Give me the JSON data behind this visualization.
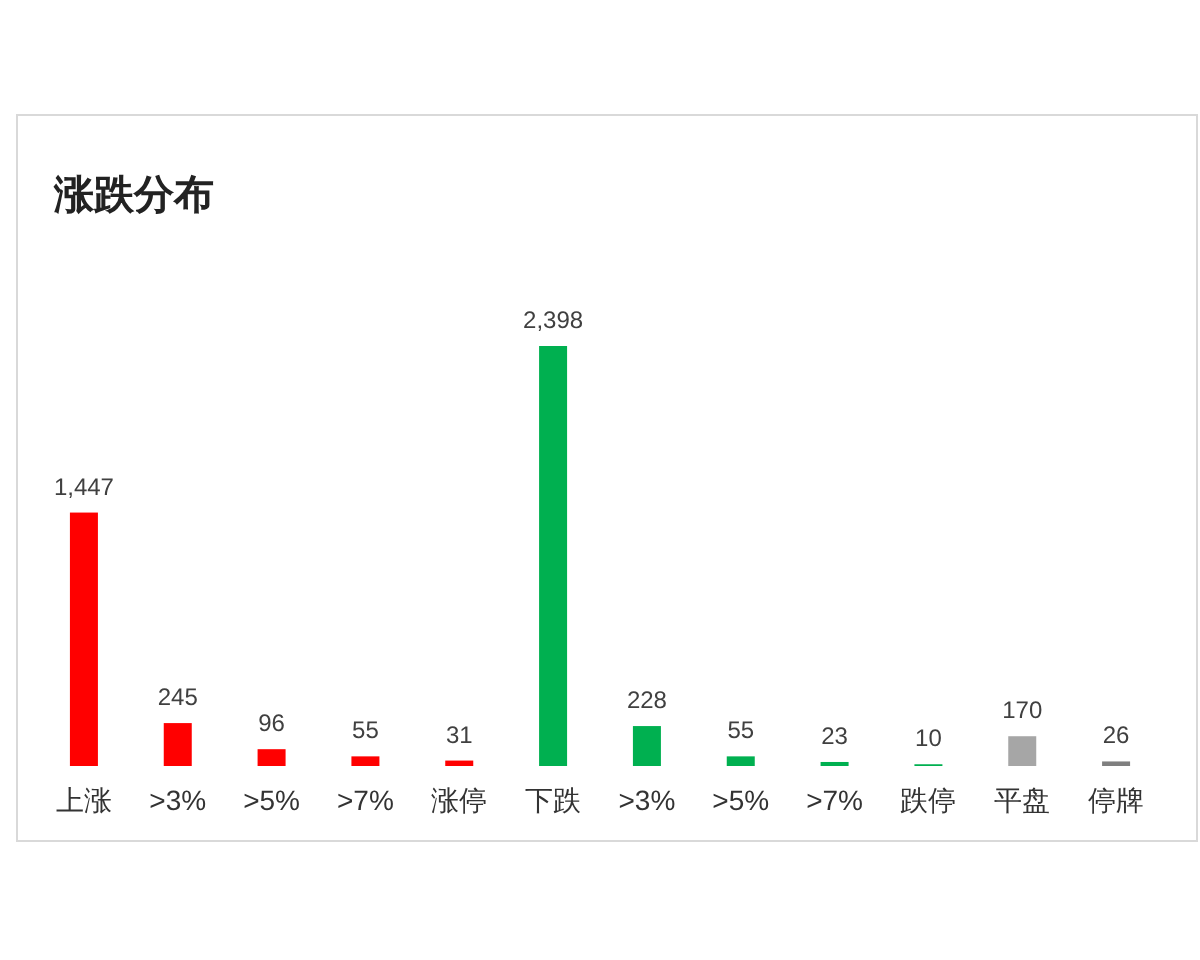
{
  "chart_data": {
    "type": "bar",
    "title": "涨跌分布",
    "categories": [
      "上涨",
      ">3%",
      ">5%",
      ">7%",
      "涨停",
      "下跌",
      ">3%",
      ">5%",
      ">7%",
      "跌停",
      "平盘",
      "停牌"
    ],
    "values": [
      1447,
      245,
      96,
      55,
      31,
      2398,
      228,
      55,
      23,
      10,
      170,
      26
    ],
    "colors": [
      "#ff0000",
      "#ff0000",
      "#ff0000",
      "#ff0000",
      "#ff0000",
      "#00b050",
      "#00b050",
      "#00b050",
      "#00b050",
      "#00b050",
      "#a6a6a6",
      "#7f7f7f"
    ],
    "value_labels": [
      "1,447",
      "245",
      "96",
      "55",
      "31",
      "2,398",
      "228",
      "55",
      "23",
      "10",
      "170",
      "26"
    ]
  }
}
